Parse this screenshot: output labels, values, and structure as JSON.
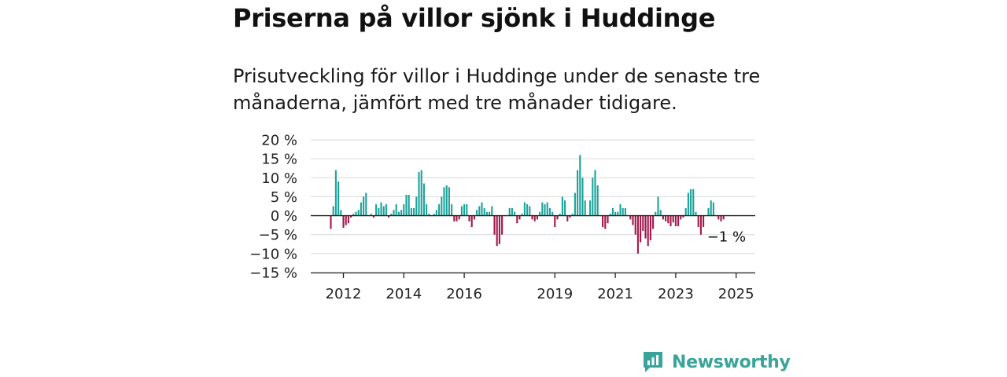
{
  "title": "Priserna på villor sjönk i Huddinge",
  "subtitle": "Prisutveckling för villor i Huddinge under de senaste tre månaderna, jämfört med tre månader tidigare.",
  "brand": {
    "name": "Newsworthy",
    "icon": "newsworthy-logo-icon",
    "color": "#3aa49a"
  },
  "colors": {
    "positive": "#1aa39b",
    "negative": "#a3174a",
    "grid": "#d9d9d9",
    "axis": "#222222"
  },
  "chart_data": {
    "type": "bar",
    "ylim": [
      -15,
      20
    ],
    "yticks": [
      {
        "value": 20,
        "label": "20 %"
      },
      {
        "value": 15,
        "label": "15 %"
      },
      {
        "value": 10,
        "label": "10 %"
      },
      {
        "value": 5,
        "label": "5 %"
      },
      {
        "value": 0,
        "label": "0 %"
      },
      {
        "value": -5,
        "label": "−5 %"
      },
      {
        "value": -10,
        "label": "−10 %"
      },
      {
        "value": -15,
        "label": "−15 %"
      }
    ],
    "x_start": "2011-08",
    "xticks": [
      {
        "label": "2012",
        "date": "2012-01"
      },
      {
        "label": "2014",
        "date": "2014-01"
      },
      {
        "label": "2016",
        "date": "2016-01"
      },
      {
        "label": "2019",
        "date": "2019-01"
      },
      {
        "label": "2021",
        "date": "2021-01"
      },
      {
        "label": "2023",
        "date": "2023-01"
      },
      {
        "label": "2025",
        "date": "2025-01"
      }
    ],
    "values": [
      -3.5,
      2.5,
      12,
      9,
      1.5,
      -3.2,
      -2.5,
      -2,
      -0.5,
      0.5,
      1,
      1.5,
      3.5,
      5,
      6,
      0,
      0.5,
      -0.5,
      3,
      2,
      3.5,
      2.5,
      3,
      -0.5,
      0.5,
      1.5,
      3,
      1,
      1.5,
      3,
      5.5,
      5.5,
      2,
      2,
      5,
      11.5,
      12,
      8.5,
      3,
      0.5,
      0,
      0.5,
      1.5,
      3,
      5,
      7.5,
      8,
      7.5,
      3,
      -1.5,
      -1.5,
      -1,
      2.5,
      3,
      3,
      -1.5,
      -3,
      -1,
      1.5,
      2.5,
      3.5,
      2,
      1,
      1,
      2.5,
      -5,
      -8,
      -7.5,
      -5,
      0,
      0,
      2,
      2,
      1,
      -2,
      -1,
      0.5,
      3.5,
      3,
      2.5,
      -1,
      -1.5,
      -1,
      1,
      3.5,
      3,
      3.5,
      2,
      1,
      -3,
      -1,
      0.5,
      5,
      4,
      -1.5,
      -0.5,
      0.5,
      6,
      12,
      16,
      10,
      4,
      0,
      4,
      10,
      12,
      8,
      0,
      -3,
      -3.5,
      -2,
      0.5,
      2,
      1,
      1,
      3,
      2,
      2,
      0,
      -1,
      -2.5,
      -5,
      -10,
      -7,
      -4,
      -6,
      -8,
      -6.5,
      -3.5,
      1,
      5,
      1.5,
      -1,
      -1.5,
      -2,
      -2.8,
      -1.8,
      -2.8,
      -2.8,
      -1,
      -0.5,
      2,
      6,
      7,
      7,
      1,
      -3,
      -5,
      -3,
      0,
      2,
      4,
      3.5,
      0,
      -1,
      -1.5,
      -1
    ],
    "annotation": {
      "label": "−1 %",
      "value": -1
    }
  }
}
